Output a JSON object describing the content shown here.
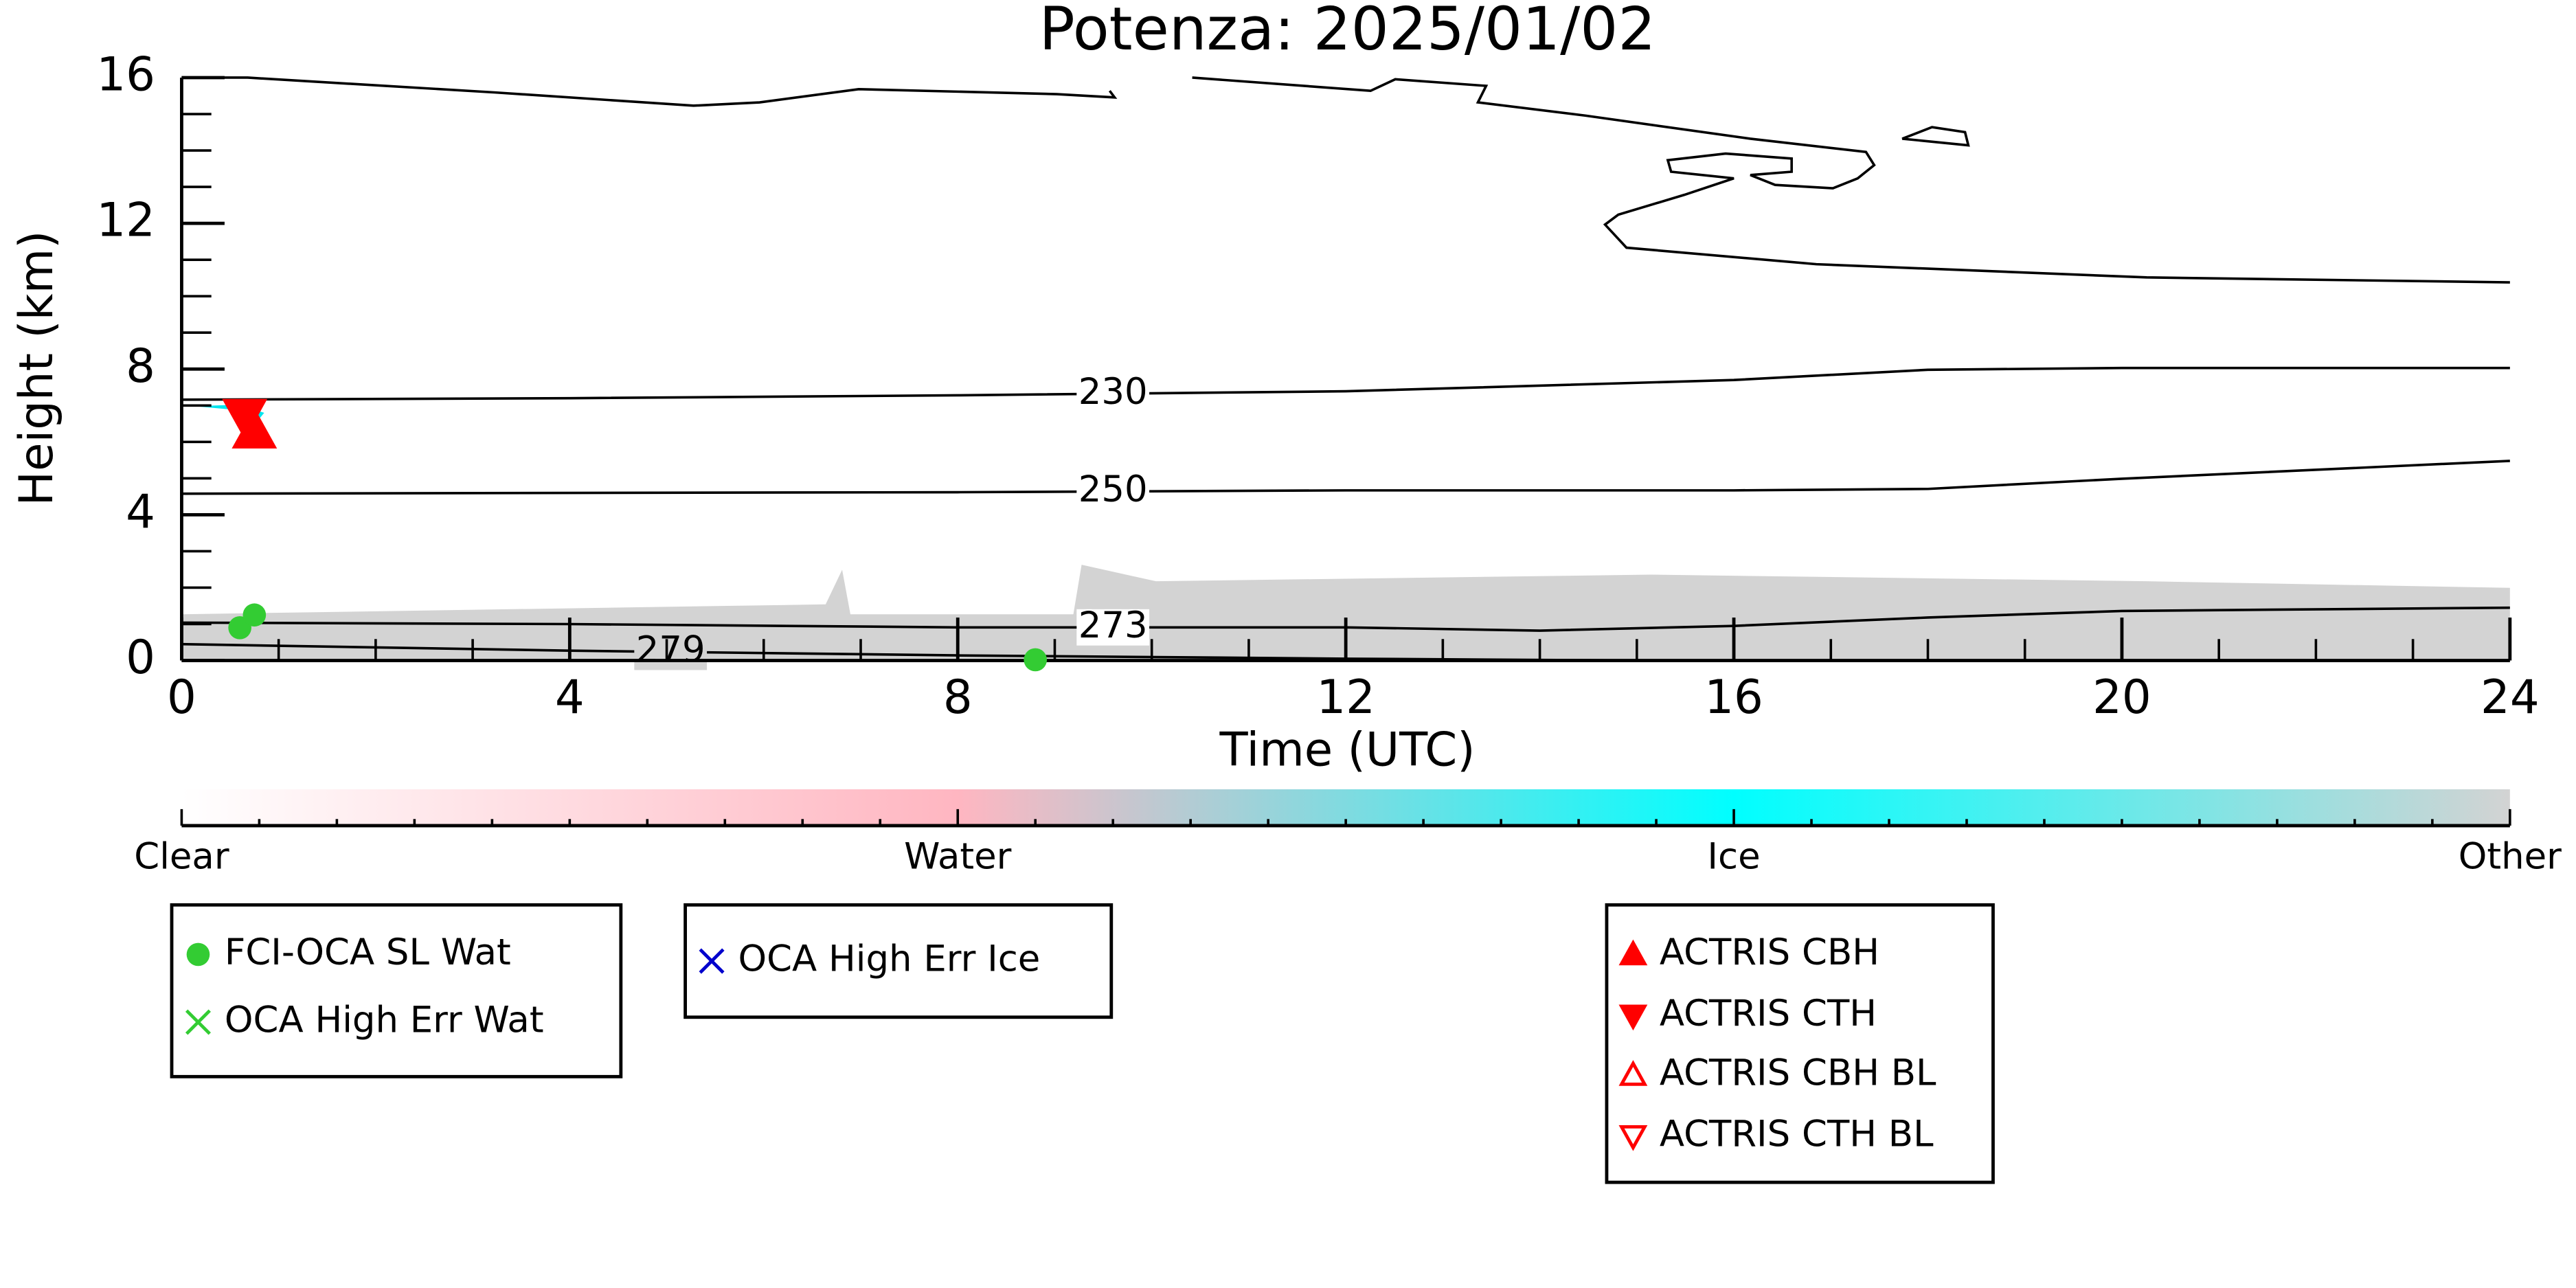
{
  "chart_data": {
    "type": "scatter",
    "title": "Potenza: 2025/01/02",
    "x_label": "Time (UTC)",
    "y_label": "Height (km)",
    "xlim": [
      0,
      24
    ],
    "xticks": [
      0,
      4,
      8,
      12,
      16,
      20,
      24
    ],
    "ylim": [
      0,
      16
    ],
    "yticks": [
      0,
      4,
      8,
      12,
      16
    ],
    "contours": [
      {
        "label": 230,
        "x": [
          0,
          4,
          8,
          12,
          16,
          18,
          20,
          24
        ],
        "values": [
          7.16,
          7.2,
          7.28,
          7.39,
          7.7,
          7.98,
          8.03,
          8.03
        ]
      },
      {
        "label": 250,
        "x": [
          0,
          4,
          8,
          12,
          16,
          18,
          20,
          24
        ],
        "values": [
          4.58,
          4.6,
          4.62,
          4.67,
          4.67,
          4.71,
          4.99,
          5.48
        ]
      },
      {
        "label": 273,
        "x": [
          0,
          4,
          8,
          12,
          14,
          16,
          18,
          20,
          24
        ],
        "values": [
          1.04,
          1.0,
          0.91,
          0.91,
          0.82,
          0.95,
          1.18,
          1.36,
          1.45
        ]
      },
      {
        "label": 279,
        "x": [
          0,
          4,
          8,
          12,
          15
        ],
        "values": [
          0.45,
          0.27,
          0.14,
          0.05,
          0
        ]
      }
    ],
    "colorbar": {
      "labels": [
        "Clear",
        "Water",
        "Ice",
        "Other"
      ],
      "colors": [
        "#ffffff",
        "#ffb6c1",
        "#00ffff",
        "#d3d3d3"
      ]
    },
    "series": [
      {
        "name": "FCI-OCA SL Wat",
        "color": "#33cc33",
        "marker": "circle",
        "x": [
          0.6,
          0.75,
          8.8
        ],
        "values": [
          0.9,
          1.25,
          0.02
        ]
      },
      {
        "name": "OCA High Err Wat",
        "color": "#33cc33",
        "marker": "x",
        "x": [],
        "values": []
      },
      {
        "name": "OCA High Err Ice",
        "color": "#0000cc",
        "marker": "x",
        "x": [],
        "values": []
      },
      {
        "name": "ACTRIS CBH",
        "color": "#ff0000",
        "marker": "triangle-up",
        "x": [
          0.75
        ],
        "values": [
          6.3
        ]
      },
      {
        "name": "ACTRIS CTH",
        "color": "#ff0000",
        "marker": "triangle-down",
        "x": [
          0.65
        ],
        "values": [
          6.7
        ]
      },
      {
        "name": "ACTRIS CBH BL",
        "color": "#ff0000",
        "marker": "triangle-up-open",
        "x": [],
        "values": []
      },
      {
        "name": "ACTRIS CTH BL",
        "color": "#ff0000",
        "marker": "triangle-down-open",
        "x": [],
        "values": []
      }
    ]
  }
}
